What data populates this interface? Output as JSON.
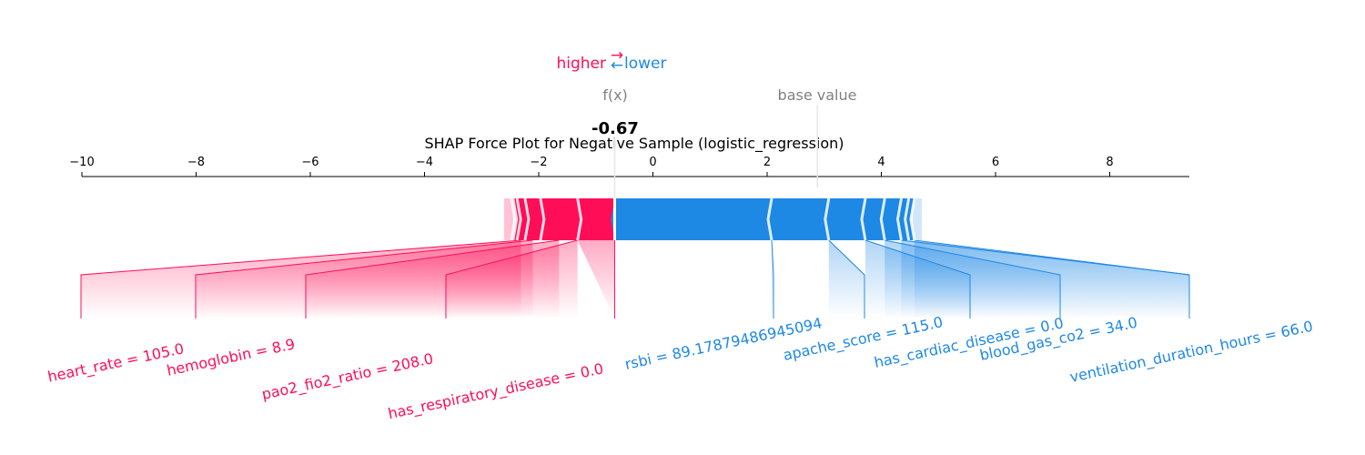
{
  "chart_data": {
    "type": "force",
    "title": "SHAP Force Plot for Negative Sample (logistic_regression)",
    "fx_label": "f(x)",
    "fx_value": -0.67,
    "fx_value_text": "-0.67",
    "base_label": "base value",
    "base_value": 2.88,
    "xlim": [
      -10,
      9.4
    ],
    "ticks": [
      -10,
      -8,
      -6,
      -4,
      -2,
      0,
      2,
      4,
      6,
      8
    ],
    "tick_labels": [
      "−10",
      "−8",
      "−6",
      "−4",
      "−2",
      "0",
      "2",
      "4",
      "6",
      "8"
    ],
    "legend": {
      "higher": "higher",
      "lower": "lower",
      "arrow_right": "→",
      "arrow_left": "←"
    },
    "colors": {
      "positive": "#ff0d57",
      "negative": "#1e88e5",
      "positive_light": "#ffc3d5",
      "negative_light": "#d1e6fa"
    },
    "positive_features": [
      {
        "label": "has_respiratory_disease = 0.0",
        "from": -1.32,
        "to": -0.67
      },
      {
        "label": "pao2_fio2_ratio = 208.0",
        "from": -1.97,
        "to": -1.32
      },
      {
        "label": "hemoglobin = 8.9",
        "from": -2.24,
        "to": -1.97
      },
      {
        "label": "heart_rate = 105.0",
        "from": -2.38,
        "to": -2.24
      },
      {
        "label": "",
        "from": -2.45,
        "to": -2.38
      },
      {
        "label": "",
        "from": -2.48,
        "to": -2.45
      }
    ],
    "negative_features": [
      {
        "label": "rsbi = 89.17879486945094",
        "from": -0.67,
        "to": 2.08
      },
      {
        "label": "apache_score = 115.0",
        "from": 2.08,
        "to": 3.08
      },
      {
        "label": "has_cardiac_disease = 0.0",
        "from": 3.08,
        "to": 3.72
      },
      {
        "label": "blood_gas_co2 = 34.0",
        "from": 3.72,
        "to": 4.06
      },
      {
        "label": "ventilation_duration_hours = 66.0",
        "from": 4.06,
        "to": 4.35
      },
      {
        "label": "",
        "from": 4.35,
        "to": 4.48
      },
      {
        "label": "",
        "from": 4.48,
        "to": 4.58
      }
    ]
  }
}
